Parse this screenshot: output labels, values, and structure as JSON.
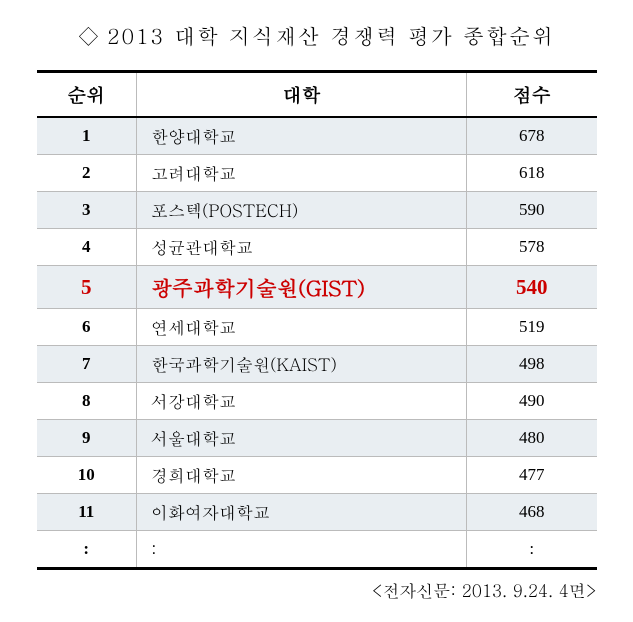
{
  "title": {
    "diamond": "◇",
    "text": "2013 대학 지식재산 경쟁력 평가 종합순위"
  },
  "table": {
    "headers": {
      "rank": "순위",
      "university": "대학",
      "score": "점수"
    },
    "rows": [
      {
        "rank": "1",
        "university": "한양대학교",
        "score": "678",
        "alt": true,
        "highlight": false
      },
      {
        "rank": "2",
        "university": "고려대학교",
        "score": "618",
        "alt": false,
        "highlight": false
      },
      {
        "rank": "3",
        "university": "포스텍(POSTECH)",
        "score": "590",
        "alt": true,
        "highlight": false
      },
      {
        "rank": "4",
        "university": "성균관대학교",
        "score": "578",
        "alt": false,
        "highlight": false
      },
      {
        "rank": "5",
        "university": "광주과학기술원(GIST)",
        "score": "540",
        "alt": true,
        "highlight": true
      },
      {
        "rank": "6",
        "university": "연세대학교",
        "score": "519",
        "alt": false,
        "highlight": false
      },
      {
        "rank": "7",
        "university": "한국과학기술원(KAIST)",
        "score": "498",
        "alt": true,
        "highlight": false
      },
      {
        "rank": "8",
        "university": "서강대학교",
        "score": "490",
        "alt": false,
        "highlight": false
      },
      {
        "rank": "9",
        "university": "서울대학교",
        "score": "480",
        "alt": true,
        "highlight": false
      },
      {
        "rank": "10",
        "university": "경희대학교",
        "score": "477",
        "alt": false,
        "highlight": false
      },
      {
        "rank": "11",
        "university": "이화여자대학교",
        "score": "468",
        "alt": true,
        "highlight": false
      },
      {
        "rank": ":",
        "university": ":",
        "score": ":",
        "alt": false,
        "highlight": false
      }
    ],
    "styling": {
      "alt_row_bg": "#e9eef2",
      "highlight_color": "#cc0000",
      "border_color": "#000000",
      "cell_border_color": "#bbbbbb",
      "font_size_normal": 17,
      "font_size_highlight": 21,
      "font_size_header": 19
    }
  },
  "source": "<전자신문: 2013. 9.24. 4면>"
}
